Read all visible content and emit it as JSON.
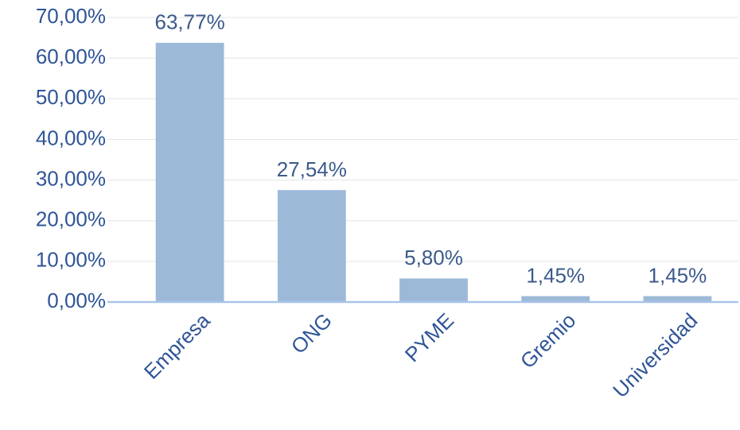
{
  "chart_data": {
    "type": "bar",
    "categories": [
      "Empresa",
      "ONG",
      "PYME",
      "Gremio",
      "Universidad"
    ],
    "values": [
      63.77,
      27.54,
      5.8,
      1.45,
      1.45
    ],
    "value_labels": [
      "63,77%",
      "27,54%",
      "5,80%",
      "1,45%",
      "1,45%"
    ],
    "color": "#9cbad8",
    "ylim": [
      0,
      70
    ],
    "yticks": [
      {
        "value": 0,
        "label": "0,00%"
      },
      {
        "value": 10,
        "label": "10,00%"
      },
      {
        "value": 20,
        "label": "20,00%"
      },
      {
        "value": 30,
        "label": "30,00%"
      },
      {
        "value": 40,
        "label": "40,00%"
      },
      {
        "value": 50,
        "label": "50,00%"
      },
      {
        "value": 60,
        "label": "60,00%"
      },
      {
        "value": 70,
        "label": "70,00%"
      }
    ],
    "grid": true
  }
}
